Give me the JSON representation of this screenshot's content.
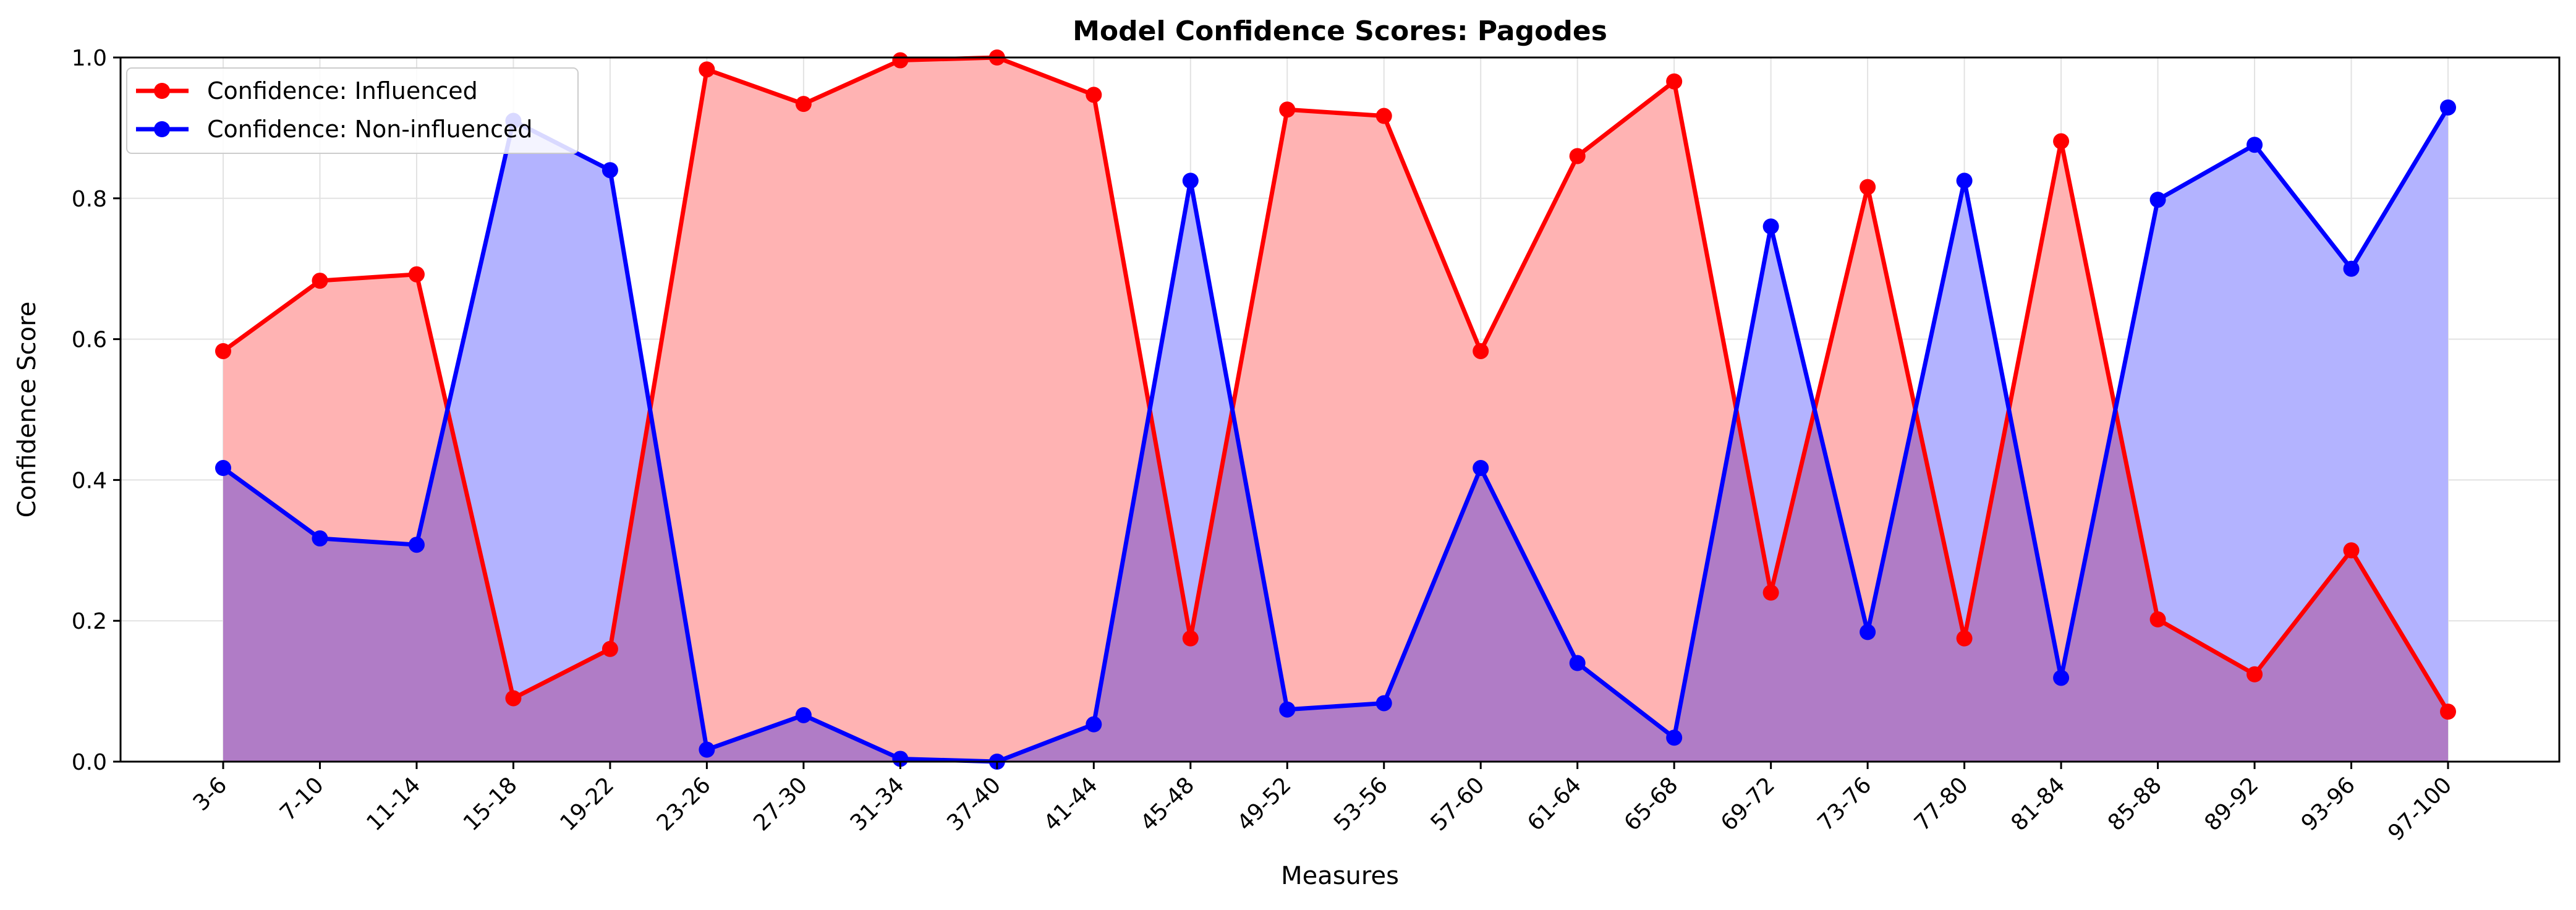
{
  "chart_data": {
    "type": "area",
    "title": "Model Confidence Scores: Pagodes",
    "xlabel": "Measures",
    "ylabel": "Confidence Score",
    "ylim": [
      0.0,
      1.0
    ],
    "yticks": [
      "0.0",
      "0.2",
      "0.4",
      "0.6",
      "0.8",
      "1.0"
    ],
    "grid": true,
    "legend_position": "top-left",
    "categories": [
      "3-6",
      "7-10",
      "11-14",
      "15-18",
      "19-22",
      "23-26",
      "27-30",
      "31-34",
      "37-40",
      "41-44",
      "45-48",
      "49-52",
      "53-56",
      "57-60",
      "61-64",
      "65-68",
      "69-72",
      "73-76",
      "77-80",
      "81-84",
      "85-88",
      "89-92",
      "93-96",
      "97-100"
    ],
    "series": [
      {
        "name": "Confidence: Influenced",
        "color": "#ff0000",
        "fill": "#ffb3b3",
        "values": [
          0.583,
          0.683,
          0.692,
          0.09,
          0.16,
          0.983,
          0.934,
          0.996,
          1.0,
          0.947,
          0.175,
          0.926,
          0.917,
          0.583,
          0.86,
          0.966,
          0.24,
          0.816,
          0.175,
          0.881,
          0.202,
          0.124,
          0.3,
          0.071
        ]
      },
      {
        "name": "Confidence: Non-influenced",
        "color": "#0000ff",
        "fill": "#b3b3ff",
        "values": [
          0.417,
          0.317,
          0.308,
          0.91,
          0.84,
          0.017,
          0.066,
          0.004,
          0.0,
          0.053,
          0.825,
          0.074,
          0.083,
          0.417,
          0.14,
          0.034,
          0.76,
          0.184,
          0.825,
          0.119,
          0.798,
          0.876,
          0.7,
          0.929
        ]
      }
    ],
    "overlap_color": "#b07cc6"
  }
}
